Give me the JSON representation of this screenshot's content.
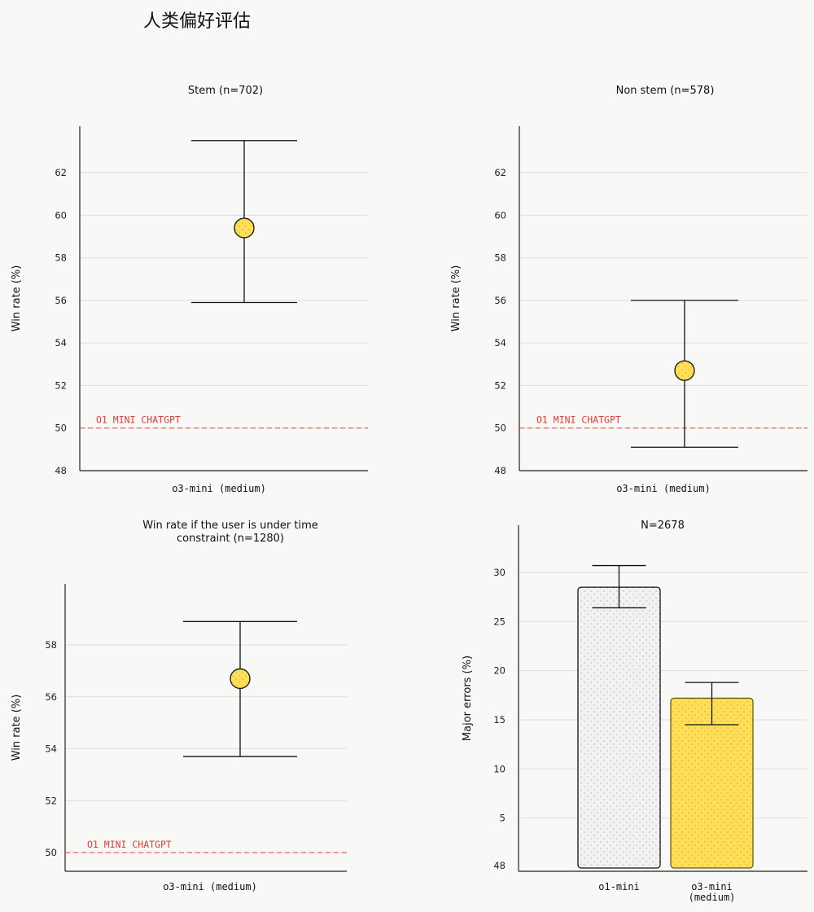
{
  "page": {
    "title": "人类偏好评估"
  },
  "colors": {
    "accent": "#ffdf57",
    "reference_line": "#e0403a",
    "axis": "#222222",
    "grid": "#dcdcdc",
    "bar_gray": "#f2f2f2"
  },
  "chart_data": [
    {
      "id": "stem",
      "type": "scatter",
      "title": "Stem (n=702)",
      "title_lines": [
        "Stem (n=702)"
      ],
      "ylabel": "Win rate (%)",
      "categories": [
        "o3-mini (medium)"
      ],
      "points": [
        {
          "category": "o3-mini (medium)",
          "value": 59.4,
          "lower": 55.9,
          "upper": 63.5
        }
      ],
      "ylim": [
        48,
        64
      ],
      "y_ticks": [
        48,
        50,
        52,
        54,
        56,
        58,
        60,
        62
      ],
      "reference": {
        "value": 50,
        "label": "O1 MINI CHATGPT"
      },
      "grid": true
    },
    {
      "id": "nonstem",
      "type": "scatter",
      "title": "Non stem (n=578)",
      "title_lines": [
        "Non stem (n=578)"
      ],
      "ylabel": "Win rate (%)",
      "categories": [
        "o3-mini (medium)"
      ],
      "points": [
        {
          "category": "o3-mini (medium)",
          "value": 52.7,
          "lower": 49.1,
          "upper": 56.0
        }
      ],
      "ylim": [
        48,
        64
      ],
      "y_ticks": [
        48,
        50,
        52,
        54,
        56,
        58,
        60,
        62
      ],
      "reference": {
        "value": 50,
        "label": "O1 MINI CHATGPT"
      },
      "grid": true
    },
    {
      "id": "time",
      "type": "scatter",
      "title": "Win rate if the user is under time constraint (n=1280)",
      "title_lines": [
        "Win rate if the user is under time",
        "constraint (n=1280)"
      ],
      "ylabel": "Win rate (%)",
      "categories": [
        "o3-mini (medium)"
      ],
      "points": [
        {
          "category": "o3-mini (medium)",
          "value": 56.7,
          "lower": 53.7,
          "upper": 58.9
        }
      ],
      "ylim": [
        49.3,
        60.1
      ],
      "y_ticks": [
        50,
        52,
        54,
        56,
        58
      ],
      "reference": {
        "value": 50,
        "label": "O1 MINI CHATGPT"
      },
      "grid": true
    },
    {
      "id": "errors",
      "type": "bar",
      "title": "N=2678",
      "title_lines": [
        "N=2678"
      ],
      "ylabel": "Major errors (%)",
      "categories": [
        "o1-mini",
        "o3-mini (medium)"
      ],
      "category_lines": [
        [
          "o1-mini"
        ],
        [
          "o3-mini",
          "(medium)"
        ]
      ],
      "values": [
        28.5,
        17.2
      ],
      "errors": [
        [
          26.4,
          30.7
        ],
        [
          14.5,
          18.8
        ]
      ],
      "bar_colors": [
        "#f2f2f2",
        "#ffdf57"
      ],
      "ylim": [
        0,
        34.3
      ],
      "y_ticks": [
        5,
        10,
        15,
        20,
        25,
        30
      ],
      "y_ticks_labels": [
        "5",
        "10",
        "15",
        "20",
        "25",
        "30"
      ],
      "y_base_label": "48",
      "grid": true
    }
  ]
}
